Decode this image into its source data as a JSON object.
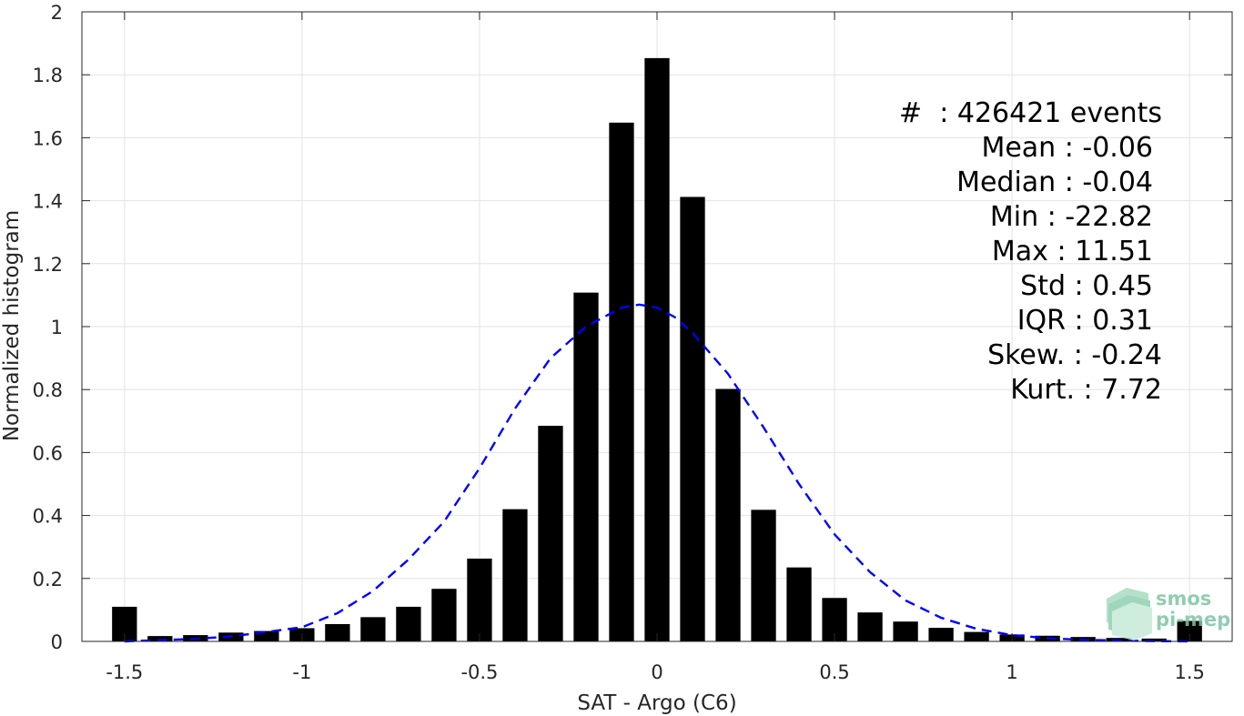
{
  "chart_data": {
    "type": "bar",
    "xlabel": "SAT - Argo (C6)",
    "ylabel": "Normalized histogram",
    "xlim": [
      -1.62,
      1.62
    ],
    "ylim": [
      0,
      2
    ],
    "x_ticks": [
      "-1.5",
      "-1",
      "-0.5",
      "0",
      "0.5",
      "1",
      "1.5"
    ],
    "y_ticks": [
      "0",
      "0.2",
      "0.4",
      "0.6",
      "0.8",
      "1",
      "1.2",
      "1.4",
      "1.6",
      "1.8",
      "2"
    ],
    "grid": true,
    "bar_color": "#000000",
    "fit_color": "#0000ff",
    "bins": [
      -1.5,
      -1.4,
      -1.3,
      -1.2,
      -1.1,
      -1.0,
      -0.9,
      -0.8,
      -0.7,
      -0.6,
      -0.5,
      -0.4,
      -0.3,
      -0.2,
      -0.1,
      0.0,
      0.1,
      0.2,
      0.3,
      0.4,
      0.5,
      0.6,
      0.7,
      0.8,
      0.9,
      1.0,
      1.1,
      1.2,
      1.3,
      1.4,
      1.5
    ],
    "values": [
      0.11,
      0.017,
      0.02,
      0.028,
      0.033,
      0.042,
      0.055,
      0.077,
      0.11,
      0.167,
      0.263,
      0.42,
      0.685,
      1.108,
      1.648,
      1.853,
      1.412,
      0.802,
      0.418,
      0.235,
      0.138,
      0.092,
      0.063,
      0.043,
      0.03,
      0.022,
      0.018,
      0.014,
      0.011,
      0.009,
      0.065
    ],
    "fit_curve": {
      "style": "dashed",
      "x": [
        -1.5,
        -1.4,
        -1.3,
        -1.2,
        -1.1,
        -1.0,
        -0.9,
        -0.8,
        -0.7,
        -0.6,
        -0.5,
        -0.4,
        -0.3,
        -0.2,
        -0.1,
        -0.05,
        0.0,
        0.05,
        0.1,
        0.2,
        0.3,
        0.4,
        0.5,
        0.6,
        0.7,
        0.8,
        0.9,
        1.0,
        1.1,
        1.2,
        1.3,
        1.4,
        1.5
      ],
      "y": [
        0.0,
        0.004,
        0.008,
        0.016,
        0.03,
        0.045,
        0.09,
        0.16,
        0.26,
        0.38,
        0.55,
        0.74,
        0.9,
        1.0,
        1.06,
        1.07,
        1.06,
        1.03,
        0.98,
        0.85,
        0.68,
        0.5,
        0.34,
        0.22,
        0.13,
        0.075,
        0.04,
        0.02,
        0.01,
        0.005,
        0.003,
        0.001,
        0.0
      ]
    }
  },
  "stats": [
    {
      "label": "#  : 426421 events"
    },
    {
      "label": "Mean : -0.06"
    },
    {
      "label": "Median : -0.04"
    },
    {
      "label": "Min : -22.82"
    },
    {
      "label": "Max : 11.51"
    },
    {
      "label": "Std : 0.45"
    },
    {
      "label": "IQR : 0.31"
    },
    {
      "label": "Skew. : -0.24"
    },
    {
      "label": "Kurt. : 7.72"
    }
  ],
  "logo": {
    "line1": "smos",
    "line2": "pi-mep"
  }
}
